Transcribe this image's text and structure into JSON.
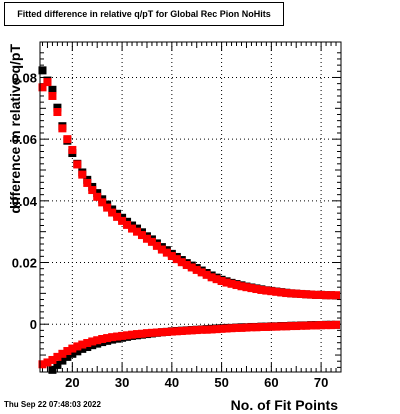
{
  "chart_data": {
    "type": "scatter",
    "title": "Fitted difference in relative q/pT for Global Rec Pion NoHits",
    "xlabel": "No. of Fit Points",
    "ylabel": "difference in relative q/pT",
    "xlim": [
      13.5,
      74
    ],
    "ylim": [
      -0.0155,
      0.0915
    ],
    "x_ticks": [
      "20",
      "30",
      "40",
      "50",
      "60",
      "70"
    ],
    "y_ticks": [
      "0",
      "0.02",
      "0.04",
      "0.06",
      "0.08"
    ],
    "grid": true,
    "marker": "square",
    "series": [
      {
        "color": "#000000",
        "points": [
          [
            14,
            0.0823
          ],
          [
            15,
            0.079
          ],
          [
            16,
            0.076
          ],
          [
            17,
            0.0702
          ],
          [
            18,
            0.0642
          ],
          [
            19,
            0.0595
          ],
          [
            20,
            0.0555
          ],
          [
            21,
            0.052
          ],
          [
            22,
            0.0492
          ],
          [
            23,
            0.0468
          ],
          [
            24,
            0.0445
          ],
          [
            25,
            0.0425
          ],
          [
            26,
            0.0405
          ],
          [
            27,
            0.0388
          ],
          [
            28,
            0.0372
          ],
          [
            29,
            0.0358
          ],
          [
            30,
            0.0345
          ],
          [
            31,
            0.0332
          ],
          [
            32,
            0.032
          ],
          [
            33,
            0.031
          ],
          [
            34,
            0.0298
          ],
          [
            35,
            0.0285
          ],
          [
            36,
            0.0275
          ],
          [
            37,
            0.0262
          ],
          [
            38,
            0.025
          ],
          [
            39,
            0.024
          ],
          [
            40,
            0.0228
          ],
          [
            41,
            0.0218
          ],
          [
            42,
            0.0208
          ],
          [
            43,
            0.0198
          ],
          [
            44,
            0.019
          ],
          [
            45,
            0.0182
          ],
          [
            46,
            0.0174
          ],
          [
            47,
            0.0166
          ],
          [
            48,
            0.0158
          ],
          [
            49,
            0.0151
          ],
          [
            50,
            0.0144
          ],
          [
            51,
            0.0139
          ],
          [
            52,
            0.0134
          ],
          [
            53,
            0.013
          ],
          [
            54,
            0.0126
          ],
          [
            55,
            0.0122
          ],
          [
            56,
            0.0119
          ],
          [
            57,
            0.0116
          ],
          [
            58,
            0.0113
          ],
          [
            59,
            0.011
          ],
          [
            60,
            0.0108
          ],
          [
            61,
            0.0106
          ],
          [
            62,
            0.0104
          ],
          [
            63,
            0.0102
          ],
          [
            64,
            0.01
          ],
          [
            65,
            0.0099
          ],
          [
            66,
            0.0098
          ],
          [
            67,
            0.0097
          ],
          [
            68,
            0.0096
          ],
          [
            69,
            0.0095
          ],
          [
            70,
            0.0095
          ],
          [
            71,
            0.0094
          ],
          [
            72,
            0.0094
          ],
          [
            73,
            0.0093
          ],
          [
            16,
            -0.0148
          ],
          [
            17,
            -0.0132
          ],
          [
            18,
            -0.0118
          ],
          [
            19,
            -0.0106
          ],
          [
            20,
            -0.0096
          ],
          [
            21,
            -0.0088
          ],
          [
            22,
            -0.008
          ],
          [
            23,
            -0.0074
          ],
          [
            24,
            -0.0068
          ],
          [
            25,
            -0.0063
          ],
          [
            26,
            -0.0058
          ],
          [
            27,
            -0.0054
          ],
          [
            28,
            -0.005
          ],
          [
            29,
            -0.0047
          ],
          [
            30,
            -0.0044
          ],
          [
            31,
            -0.0041
          ],
          [
            32,
            -0.0038
          ],
          [
            33,
            -0.0036
          ],
          [
            34,
            -0.0034
          ],
          [
            35,
            -0.0032
          ],
          [
            36,
            -0.003
          ],
          [
            37,
            -0.0028
          ],
          [
            38,
            -0.0026
          ],
          [
            39,
            -0.0025
          ],
          [
            40,
            -0.0023
          ],
          [
            41,
            -0.0022
          ],
          [
            42,
            -0.0021
          ],
          [
            43,
            -0.002
          ],
          [
            44,
            -0.0019
          ],
          [
            45,
            -0.0018
          ],
          [
            46,
            -0.0017
          ],
          [
            47,
            -0.0016
          ],
          [
            48,
            -0.0015
          ],
          [
            49,
            -0.0014
          ],
          [
            50,
            -0.0013
          ],
          [
            51,
            -0.0012
          ],
          [
            52,
            -0.0012
          ],
          [
            53,
            -0.0011
          ],
          [
            54,
            -0.001
          ],
          [
            55,
            -0.001
          ],
          [
            56,
            -0.0009
          ],
          [
            57,
            -0.0009
          ],
          [
            58,
            -0.0008
          ],
          [
            59,
            -0.0008
          ],
          [
            60,
            -0.0007
          ],
          [
            61,
            -0.0007
          ],
          [
            62,
            -0.0006
          ],
          [
            63,
            -0.0006
          ],
          [
            64,
            -0.0005
          ],
          [
            65,
            -0.0005
          ],
          [
            66,
            -0.0004
          ],
          [
            67,
            -0.0004
          ],
          [
            68,
            -0.0003
          ],
          [
            69,
            -0.0003
          ],
          [
            70,
            -0.0003
          ],
          [
            71,
            -0.0002
          ],
          [
            72,
            -0.0002
          ],
          [
            73,
            -0.0002
          ]
        ]
      },
      {
        "color": "#ff0000",
        "points": [
          [
            14,
            0.0768
          ],
          [
            15,
            0.0785
          ],
          [
            16,
            0.074
          ],
          [
            17,
            0.0688
          ],
          [
            18,
            0.0635
          ],
          [
            19,
            0.06
          ],
          [
            20,
            0.0565
          ],
          [
            21,
            0.0518
          ],
          [
            22,
            0.0485
          ],
          [
            23,
            0.0458
          ],
          [
            24,
            0.0435
          ],
          [
            25,
            0.0413
          ],
          [
            26,
            0.0395
          ],
          [
            27,
            0.0378
          ],
          [
            28,
            0.0362
          ],
          [
            29,
            0.0348
          ],
          [
            30,
            0.0335
          ],
          [
            31,
            0.0322
          ],
          [
            32,
            0.031
          ],
          [
            33,
            0.03
          ],
          [
            34,
            0.0289
          ],
          [
            35,
            0.0277
          ],
          [
            36,
            0.0267
          ],
          [
            37,
            0.0254
          ],
          [
            38,
            0.0242
          ],
          [
            39,
            0.0232
          ],
          [
            40,
            0.0221
          ],
          [
            41,
            0.0211
          ],
          [
            42,
            0.0201
          ],
          [
            43,
            0.0192
          ],
          [
            44,
            0.0184
          ],
          [
            45,
            0.0176
          ],
          [
            46,
            0.0168
          ],
          [
            47,
            0.016
          ],
          [
            48,
            0.0152
          ],
          [
            49,
            0.0146
          ],
          [
            50,
            0.014
          ],
          [
            51,
            0.0135
          ],
          [
            52,
            0.0131
          ],
          [
            53,
            0.0127
          ],
          [
            54,
            0.0123
          ],
          [
            55,
            0.012
          ],
          [
            56,
            0.0117
          ],
          [
            57,
            0.0114
          ],
          [
            58,
            0.0111
          ],
          [
            59,
            0.0109
          ],
          [
            60,
            0.0107
          ],
          [
            61,
            0.0105
          ],
          [
            62,
            0.0103
          ],
          [
            63,
            0.0101
          ],
          [
            64,
            0.01
          ],
          [
            65,
            0.0099
          ],
          [
            66,
            0.0098
          ],
          [
            67,
            0.0097
          ],
          [
            68,
            0.0096
          ],
          [
            69,
            0.0095
          ],
          [
            70,
            0.0095
          ],
          [
            71,
            0.0094
          ],
          [
            72,
            0.0094
          ],
          [
            73,
            0.0094
          ],
          [
            14,
            -0.013
          ],
          [
            15,
            -0.0124
          ],
          [
            16,
            -0.0116
          ],
          [
            17,
            -0.0106
          ],
          [
            18,
            -0.0096
          ],
          [
            19,
            -0.0087
          ],
          [
            20,
            -0.0079
          ],
          [
            21,
            -0.0072
          ],
          [
            22,
            -0.0066
          ],
          [
            23,
            -0.0061
          ],
          [
            24,
            -0.0056
          ],
          [
            25,
            -0.0052
          ],
          [
            26,
            -0.0048
          ],
          [
            27,
            -0.0045
          ],
          [
            28,
            -0.0042
          ],
          [
            29,
            -0.004
          ],
          [
            30,
            -0.0038
          ],
          [
            31,
            -0.0036
          ],
          [
            32,
            -0.0034
          ],
          [
            33,
            -0.0032
          ],
          [
            34,
            -0.0031
          ],
          [
            35,
            -0.0029
          ],
          [
            36,
            -0.0028
          ],
          [
            37,
            -0.0027
          ],
          [
            38,
            -0.0026
          ],
          [
            39,
            -0.0025
          ],
          [
            40,
            -0.0024
          ],
          [
            41,
            -0.0023
          ],
          [
            42,
            -0.0022
          ],
          [
            43,
            -0.0021
          ],
          [
            44,
            -0.002
          ],
          [
            45,
            -0.0019
          ],
          [
            46,
            -0.0018
          ],
          [
            47,
            -0.0018
          ],
          [
            48,
            -0.0017
          ],
          [
            49,
            -0.0016
          ],
          [
            50,
            -0.0015
          ],
          [
            51,
            -0.0014
          ],
          [
            52,
            -0.0013
          ],
          [
            53,
            -0.0012
          ],
          [
            54,
            -0.0012
          ],
          [
            55,
            -0.0011
          ],
          [
            56,
            -0.001
          ],
          [
            57,
            -0.001
          ],
          [
            58,
            -0.0009
          ],
          [
            59,
            -0.0009
          ],
          [
            60,
            -0.0008
          ],
          [
            61,
            -0.0008
          ],
          [
            62,
            -0.0007
          ],
          [
            63,
            -0.0007
          ],
          [
            64,
            -0.0006
          ],
          [
            65,
            -0.0006
          ],
          [
            66,
            -0.0005
          ],
          [
            67,
            -0.0005
          ],
          [
            68,
            -0.0004
          ],
          [
            69,
            -0.0004
          ],
          [
            70,
            -0.0003
          ],
          [
            71,
            -0.0003
          ],
          [
            72,
            -0.0003
          ],
          [
            73,
            -0.0002
          ]
        ]
      }
    ]
  },
  "footer": {
    "timestamp": "Thu Sep 22 07:48:03 2022"
  }
}
